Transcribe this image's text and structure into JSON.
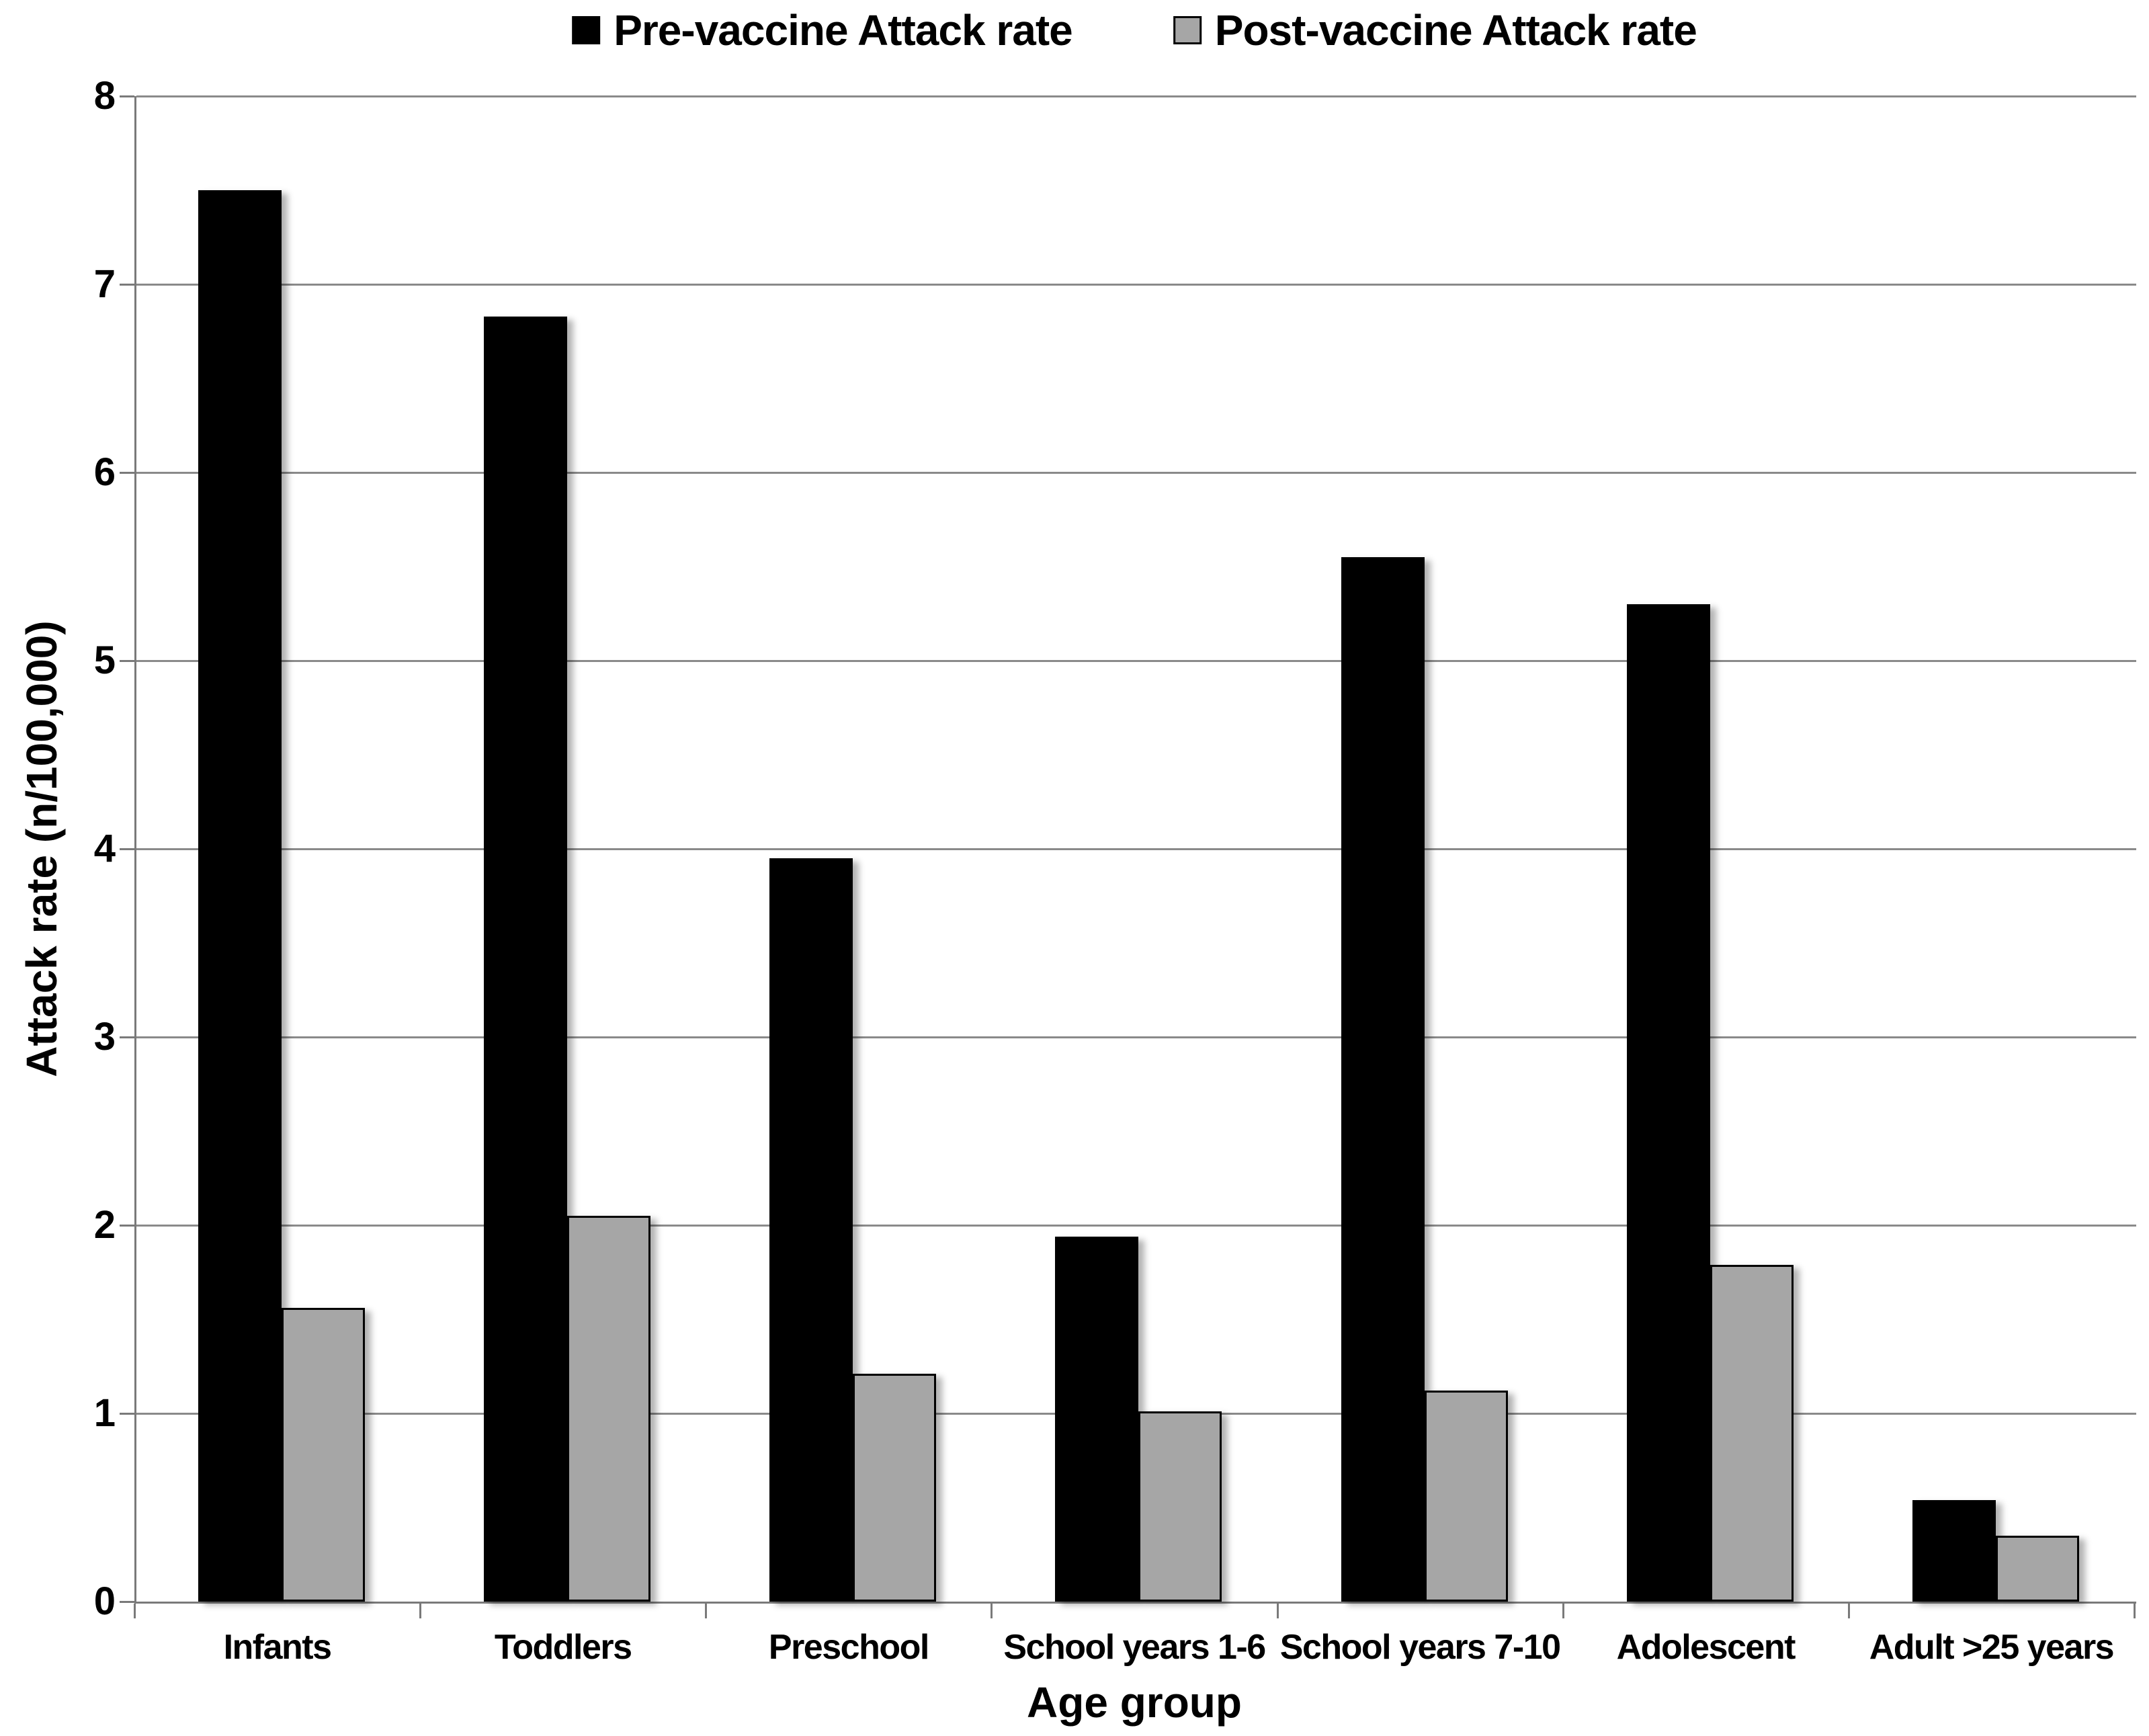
{
  "page": {
    "background": "#ffffff"
  },
  "legend": {
    "items": [
      {
        "label": "Pre-vaccine Attack rate",
        "color": "#000000"
      },
      {
        "label": "Post-vaccine Attack rate",
        "color": "#a6a6a6"
      }
    ]
  },
  "chart_data": {
    "type": "bar",
    "title": "",
    "categories": [
      "Infants",
      "Toddlers",
      "Preschool",
      "School years 1-6",
      "School years 7-10",
      "Adolescent",
      "Adult >25 years"
    ],
    "series": [
      {
        "name": "Pre-vaccine Attack rate",
        "color": "#000000",
        "values": [
          7.5,
          6.83,
          3.95,
          1.94,
          5.55,
          5.3,
          0.54
        ]
      },
      {
        "name": "Post-vaccine Attack rate",
        "color": "#a6a6a6",
        "border_color": "#000000",
        "values": [
          1.56,
          2.05,
          1.21,
          1.01,
          1.12,
          1.79,
          0.35
        ]
      }
    ],
    "xlabel": "Age group",
    "ylabel": "Attack rate (n/100,000)",
    "ylim": [
      0,
      8
    ],
    "ytick_step": 1,
    "yticks": [
      "0",
      "1",
      "2",
      "3",
      "4",
      "5",
      "6",
      "7",
      "8"
    ],
    "grid": true,
    "gridline_color": "#8a8a8a",
    "axis_color": "#7a7a7a",
    "legend_position": "top-center",
    "background": "#ffffff"
  }
}
